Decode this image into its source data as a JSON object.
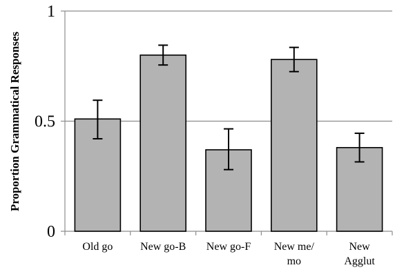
{
  "chart_data": {
    "type": "bar",
    "ylabel": "Proportion Grammatical Responses",
    "xlabel": "",
    "ylim": [
      0,
      1
    ],
    "yticks": [
      "0",
      "0.5",
      "1"
    ],
    "grid": "horizontal",
    "categories": [
      [
        "Old go"
      ],
      [
        "New go-B"
      ],
      [
        "New go-F"
      ],
      [
        "New me/",
        "mo"
      ],
      [
        "New",
        "Agglut"
      ]
    ],
    "values": [
      0.51,
      0.8,
      0.37,
      0.78,
      0.38
    ],
    "error_low": [
      0.42,
      0.755,
      0.28,
      0.725,
      0.315
    ],
    "error_high": [
      0.595,
      0.845,
      0.465,
      0.835,
      0.445
    ],
    "colors": {
      "bar_fill": "#b3b3b3",
      "bar_stroke": "#000000",
      "grid": "#8c8c8c",
      "axis": "#8c8c8c",
      "error": "#000000"
    }
  }
}
